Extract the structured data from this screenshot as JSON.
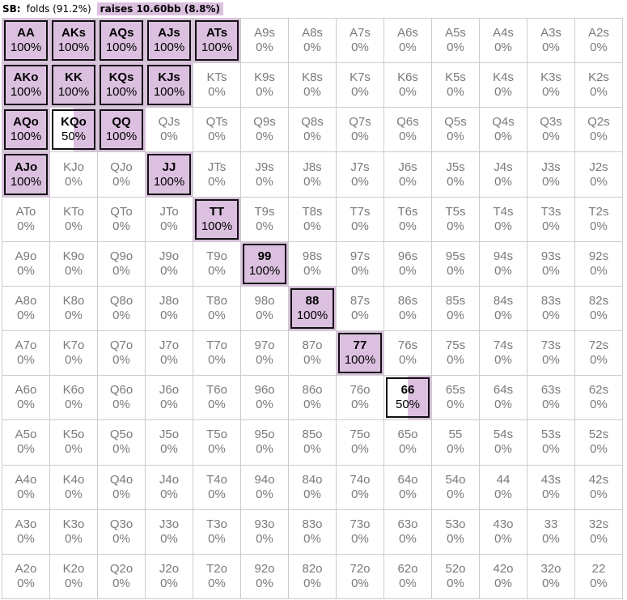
{
  "header": {
    "position": "SB:",
    "fold_label": "folds (91.2%)",
    "raise_label": "raises 10.60bb (8.8%)"
  },
  "colors": {
    "raise": "#dcc0e0"
  },
  "ranks": [
    "A",
    "K",
    "Q",
    "J",
    "T",
    "9",
    "8",
    "7",
    "6",
    "5",
    "4",
    "3",
    "2"
  ],
  "grid": {
    "cells": []
  },
  "frequencies": {
    "AA": 100,
    "AKs": 100,
    "AQs": 100,
    "AJs": 100,
    "ATs": 100,
    "AKo": 100,
    "KK": 100,
    "KQs": 100,
    "KJs": 100,
    "AQo": 100,
    "KQo": 50,
    "QQ": 100,
    "AJo": 100,
    "JJ": 100,
    "TT": 100,
    "99": 100,
    "88": 100,
    "77": 100,
    "66": 50
  }
}
